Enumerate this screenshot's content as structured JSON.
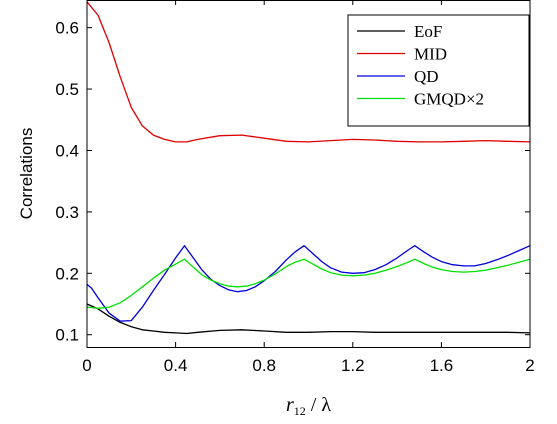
{
  "chart_data": {
    "type": "line",
    "title": "",
    "xlabel": {
      "main": "r",
      "sub": "12",
      "rest": " / λ"
    },
    "ylabel": "Correlations",
    "xlim": [
      0,
      2
    ],
    "ylim": [
      0.08,
      0.645
    ],
    "xticks": [
      "0",
      "0.4",
      "0.8",
      "1.2",
      "1.6",
      "2"
    ],
    "xtick_values": [
      0,
      0.4,
      0.8,
      1.2,
      1.6,
      2
    ],
    "yticks": [
      "0.1",
      "0.2",
      "0.3",
      "0.4",
      "0.5",
      "0.6"
    ],
    "ytick_values": [
      0.1,
      0.2,
      0.3,
      0.4,
      0.5,
      0.6
    ],
    "grid": false,
    "legend_position": "top-right",
    "series": [
      {
        "name": "EoF",
        "color": "#000000",
        "x": [
          0,
          0.05,
          0.1,
          0.15,
          0.2,
          0.25,
          0.3,
          0.35,
          0.4,
          0.45,
          0.5,
          0.6,
          0.7,
          0.8,
          0.9,
          1.0,
          1.1,
          1.2,
          1.3,
          1.4,
          1.5,
          1.6,
          1.7,
          1.8,
          1.9,
          2.0
        ],
        "y": [
          0.15,
          0.142,
          0.13,
          0.12,
          0.113,
          0.108,
          0.106,
          0.104,
          0.103,
          0.102,
          0.104,
          0.107,
          0.108,
          0.106,
          0.104,
          0.104,
          0.105,
          0.105,
          0.104,
          0.104,
          0.104,
          0.104,
          0.104,
          0.104,
          0.104,
          0.103
        ]
      },
      {
        "name": "MID",
        "color": "#e00000",
        "x": [
          0,
          0.05,
          0.1,
          0.15,
          0.2,
          0.25,
          0.3,
          0.35,
          0.4,
          0.45,
          0.5,
          0.6,
          0.7,
          0.8,
          0.9,
          1.0,
          1.1,
          1.2,
          1.3,
          1.4,
          1.5,
          1.6,
          1.7,
          1.8,
          1.9,
          2.0
        ],
        "y": [
          0.642,
          0.62,
          0.575,
          0.52,
          0.47,
          0.44,
          0.425,
          0.418,
          0.414,
          0.414,
          0.418,
          0.424,
          0.425,
          0.42,
          0.415,
          0.414,
          0.416,
          0.418,
          0.417,
          0.415,
          0.414,
          0.414,
          0.415,
          0.416,
          0.415,
          0.414
        ]
      },
      {
        "name": "QD",
        "color": "#0000dd",
        "x": [
          0,
          0.02,
          0.05,
          0.1,
          0.15,
          0.2,
          0.25,
          0.3,
          0.35,
          0.4,
          0.44,
          0.48,
          0.52,
          0.56,
          0.6,
          0.64,
          0.68,
          0.72,
          0.76,
          0.8,
          0.85,
          0.9,
          0.94,
          0.98,
          1.02,
          1.06,
          1.1,
          1.15,
          1.2,
          1.25,
          1.3,
          1.35,
          1.4,
          1.45,
          1.48,
          1.52,
          1.56,
          1.6,
          1.65,
          1.7,
          1.75,
          1.8,
          1.85,
          1.9,
          1.95,
          2.0
        ],
        "y": [
          0.182,
          0.176,
          0.16,
          0.135,
          0.122,
          0.123,
          0.145,
          0.172,
          0.198,
          0.225,
          0.245,
          0.225,
          0.205,
          0.19,
          0.18,
          0.173,
          0.17,
          0.172,
          0.178,
          0.188,
          0.203,
          0.222,
          0.235,
          0.245,
          0.232,
          0.219,
          0.209,
          0.202,
          0.2,
          0.201,
          0.206,
          0.214,
          0.225,
          0.238,
          0.245,
          0.235,
          0.226,
          0.219,
          0.214,
          0.212,
          0.212,
          0.216,
          0.222,
          0.229,
          0.237,
          0.245
        ]
      },
      {
        "name": "GMQD×2",
        "color": "#00e000",
        "x": [
          0,
          0.05,
          0.1,
          0.15,
          0.2,
          0.25,
          0.3,
          0.35,
          0.4,
          0.44,
          0.48,
          0.52,
          0.56,
          0.6,
          0.64,
          0.68,
          0.72,
          0.76,
          0.8,
          0.85,
          0.9,
          0.94,
          0.98,
          1.02,
          1.06,
          1.1,
          1.15,
          1.2,
          1.25,
          1.3,
          1.35,
          1.4,
          1.45,
          1.48,
          1.52,
          1.56,
          1.6,
          1.65,
          1.7,
          1.75,
          1.8,
          1.85,
          1.9,
          1.95,
          2.0
        ],
        "y": [
          0.145,
          0.143,
          0.145,
          0.152,
          0.164,
          0.178,
          0.192,
          0.205,
          0.215,
          0.223,
          0.21,
          0.197,
          0.189,
          0.183,
          0.179,
          0.178,
          0.179,
          0.183,
          0.189,
          0.199,
          0.211,
          0.218,
          0.223,
          0.215,
          0.207,
          0.201,
          0.197,
          0.196,
          0.197,
          0.2,
          0.205,
          0.211,
          0.218,
          0.223,
          0.216,
          0.21,
          0.206,
          0.203,
          0.202,
          0.203,
          0.205,
          0.209,
          0.213,
          0.218,
          0.223
        ]
      }
    ]
  }
}
